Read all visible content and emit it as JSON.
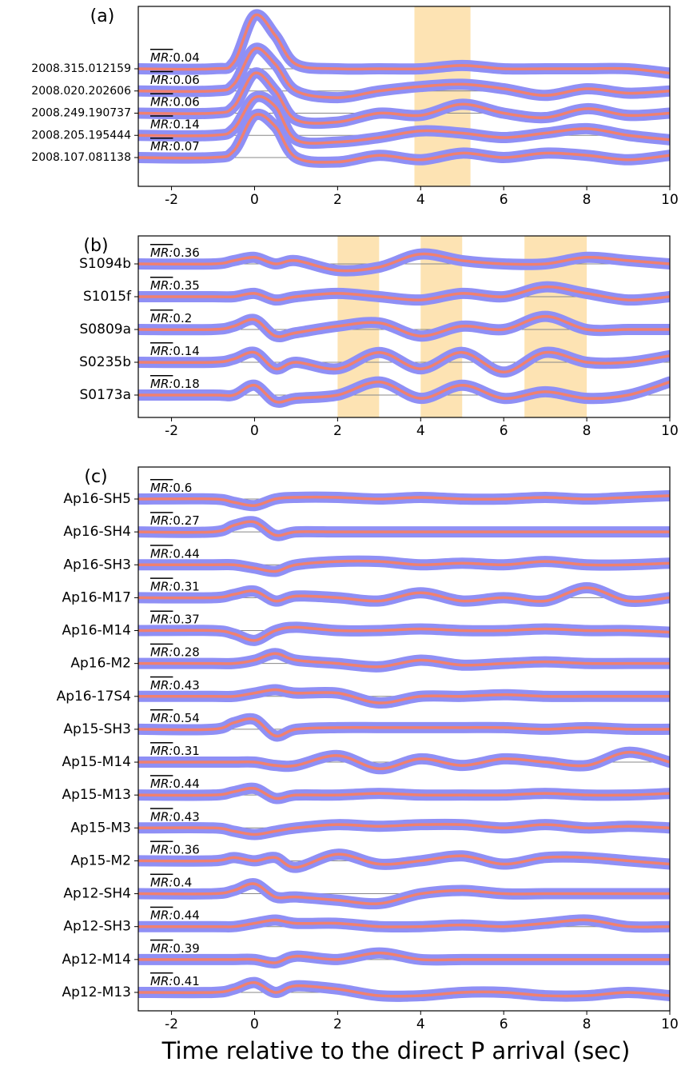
{
  "chart_data": [
    {
      "type": "line",
      "panel": "(a)",
      "xlim": [
        -2.8,
        10
      ],
      "xticks": [
        -2,
        0,
        2,
        4,
        6,
        8,
        10
      ],
      "shaded": [
        [
          3.85,
          5.2
        ]
      ],
      "mr_label": "MR:",
      "band_color": "#8f8ff5",
      "mean_color": "#f08070",
      "shade_color": "#fde3b3",
      "x": [
        -2.8,
        -1,
        -0.5,
        0,
        0.5,
        1,
        2,
        3,
        4,
        5,
        6,
        7,
        8,
        9,
        10
      ],
      "series": [
        {
          "name": "2008.315.012159",
          "mr": 0.04,
          "values": [
            0,
            0,
            0.3,
            2.4,
            1.5,
            0.2,
            0,
            0,
            0,
            0.15,
            0,
            0,
            0,
            0,
            -0.2
          ]
        },
        {
          "name": "2008.020.202606",
          "mr": 0.06,
          "values": [
            0,
            0,
            0.3,
            1.9,
            1.2,
            0,
            -0.3,
            0,
            0.2,
            0.3,
            0.1,
            -0.2,
            0.1,
            -0.1,
            0
          ]
        },
        {
          "name": "2008.249.190737",
          "mr": 0.06,
          "values": [
            0,
            0,
            0.3,
            1.8,
            1,
            -0.3,
            -0.4,
            0,
            -0.1,
            0.4,
            0,
            -0.2,
            0.2,
            -0.1,
            0
          ]
        },
        {
          "name": "2008.205.195444",
          "mr": 0.14,
          "values": [
            0,
            0,
            0.3,
            1.7,
            1.3,
            -0.2,
            -0.3,
            -0.1,
            0.2,
            0.1,
            -0.1,
            0.1,
            0.3,
            0,
            -0.2
          ]
        },
        {
          "name": "2008.107.081138",
          "mr": 0.07,
          "values": [
            0,
            0,
            0.3,
            1.9,
            1.4,
            0,
            -0.2,
            0.1,
            -0.1,
            0.2,
            0,
            0.2,
            0.1,
            -0.1,
            0.1
          ]
        }
      ]
    },
    {
      "type": "line",
      "panel": "(b)",
      "xlim": [
        -2.8,
        10
      ],
      "xticks": [
        -2,
        0,
        2,
        4,
        6,
        8,
        10
      ],
      "shaded": [
        [
          2,
          3
        ],
        [
          4,
          5
        ],
        [
          6.5,
          8
        ]
      ],
      "mr_label": "MR:",
      "band_color": "#8f8ff5",
      "mean_color": "#f08070",
      "shade_color": "#fde3b3",
      "x": [
        -2.8,
        -1,
        -0.5,
        0,
        0.5,
        1,
        2,
        3,
        4,
        5,
        6,
        7,
        8,
        9,
        10
      ],
      "series": [
        {
          "name": "S1094b",
          "mr": 0.36,
          "values": [
            0,
            0,
            0.1,
            0.2,
            0,
            0.1,
            -0.2,
            -0.1,
            0.3,
            0.1,
            0,
            0,
            0.2,
            0.1,
            0
          ]
        },
        {
          "name": "S1015f",
          "mr": 0.35,
          "values": [
            0,
            0,
            0,
            0.1,
            -0.1,
            0,
            0.1,
            0,
            -0.1,
            0.1,
            0,
            0.3,
            0.1,
            -0.1,
            0
          ]
        },
        {
          "name": "S0809a",
          "mr": 0.2,
          "values": [
            0,
            0,
            0.1,
            0.3,
            -0.2,
            -0.1,
            0.1,
            0.2,
            -0.2,
            0.1,
            0,
            0.4,
            0,
            0,
            0
          ]
        },
        {
          "name": "S0235b",
          "mr": 0.14,
          "values": [
            0,
            0,
            0.1,
            0.3,
            -0.2,
            0,
            -0.2,
            0.3,
            -0.2,
            0.3,
            -0.3,
            0.3,
            0,
            0,
            0.2
          ]
        },
        {
          "name": "S0173a",
          "mr": 0.18,
          "values": [
            0,
            0,
            0,
            0.3,
            -0.2,
            -0.1,
            0,
            0.4,
            -0.1,
            0.3,
            -0.1,
            0.1,
            -0.1,
            0,
            0.4
          ]
        }
      ]
    },
    {
      "type": "line",
      "panel": "(c)",
      "xlim": [
        -2.8,
        10
      ],
      "xticks": [
        -2,
        0,
        2,
        4,
        6,
        8,
        10
      ],
      "shaded": [],
      "mr_label": "MR:",
      "band_color": "#8f8ff5",
      "mean_color": "#f08070",
      "shade_color": "#fde3b3",
      "xlabel": "Time relative to the direct P arrival (sec)",
      "x": [
        -2.8,
        -1,
        -0.5,
        0,
        0.5,
        1,
        2,
        3,
        4,
        5,
        6,
        7,
        8,
        9,
        10
      ],
      "series": [
        {
          "name": "Ap16-SH5",
          "mr": 0.6,
          "values": [
            0,
            0,
            -0.1,
            -0.2,
            0,
            0.05,
            0.05,
            0,
            0.05,
            0,
            0,
            0.05,
            0,
            0.05,
            0.1
          ]
        },
        {
          "name": "Ap16-SH4",
          "mr": 0.27,
          "values": [
            0,
            0,
            0.2,
            0.3,
            -0.1,
            0,
            0,
            0,
            0,
            0,
            0,
            0,
            0,
            0,
            0
          ]
        },
        {
          "name": "Ap16-SH3",
          "mr": 0.44,
          "values": [
            0,
            0,
            0,
            -0.1,
            -0.2,
            0,
            0.1,
            0.1,
            0,
            0.05,
            0,
            0.1,
            0,
            0,
            0.05
          ]
        },
        {
          "name": "Ap16-M17",
          "mr": 0.31,
          "values": [
            0,
            0,
            0.1,
            0.2,
            -0.1,
            0.05,
            0,
            -0.1,
            0.15,
            -0.1,
            0,
            -0.1,
            0.3,
            -0.1,
            0
          ]
        },
        {
          "name": "Ap16-M14",
          "mr": 0.37,
          "values": [
            0,
            0,
            -0.1,
            -0.3,
            0,
            0.1,
            0,
            0,
            0.05,
            0,
            0,
            0.05,
            0,
            0,
            -0.05
          ]
        },
        {
          "name": "Ap16-M2",
          "mr": 0.28,
          "values": [
            0,
            0,
            0,
            0.1,
            0.3,
            0.1,
            0,
            -0.1,
            0.1,
            -0.05,
            0,
            0.05,
            0,
            0,
            0
          ]
        },
        {
          "name": "Ap16-17S4",
          "mr": 0.43,
          "values": [
            0,
            0,
            0,
            0.1,
            0.2,
            0.1,
            0.1,
            -0.2,
            0,
            0,
            0.05,
            0,
            0,
            0,
            0
          ]
        },
        {
          "name": "Ap15-SH3",
          "mr": 0.54,
          "values": [
            0,
            0,
            0.2,
            0.3,
            -0.2,
            0,
            0.05,
            0.05,
            0.05,
            0.05,
            0.05,
            0,
            0.05,
            0,
            0
          ]
        },
        {
          "name": "Ap15-M14",
          "mr": 0.31,
          "values": [
            0,
            0,
            0,
            0,
            -0.1,
            -0.1,
            0.2,
            -0.2,
            0.1,
            -0.1,
            0.1,
            0,
            -0.1,
            0.3,
            0
          ]
        },
        {
          "name": "Ap15-M13",
          "mr": 0.44,
          "values": [
            0,
            0,
            0.1,
            0.2,
            -0.1,
            0,
            0,
            0.05,
            0,
            0,
            0,
            0.05,
            0,
            0,
            0.05
          ]
        },
        {
          "name": "Ap15-M3",
          "mr": 0.43,
          "values": [
            0,
            0,
            -0.1,
            -0.2,
            -0.1,
            0,
            0.1,
            0.05,
            0.1,
            0.1,
            0,
            0.1,
            0,
            0.05,
            0
          ]
        },
        {
          "name": "Ap15-M2",
          "mr": 0.36,
          "values": [
            0,
            0,
            0.1,
            0,
            0.1,
            -0.2,
            0.2,
            -0.1,
            0,
            0.15,
            -0.1,
            0.1,
            0.1,
            0,
            -0.1
          ]
        },
        {
          "name": "Ap12-SH4",
          "mr": 0.4,
          "values": [
            0,
            0,
            0.1,
            0.3,
            -0.1,
            -0.1,
            -0.2,
            -0.3,
            0,
            0.1,
            0,
            0,
            0,
            0,
            0
          ]
        },
        {
          "name": "Ap12-SH3",
          "mr": 0.44,
          "values": [
            0,
            0,
            0,
            0.1,
            0.2,
            0.1,
            0.1,
            0,
            0,
            0.05,
            0,
            0.1,
            0.2,
            0,
            0
          ]
        },
        {
          "name": "Ap12-M14",
          "mr": 0.39,
          "values": [
            0,
            0,
            0,
            0,
            -0.1,
            0.1,
            0,
            0.2,
            0,
            0,
            0,
            0,
            0,
            0,
            0
          ]
        },
        {
          "name": "Ap12-M13",
          "mr": 0.41,
          "values": [
            0,
            0,
            0.1,
            0.3,
            0,
            0.2,
            0.1,
            -0.1,
            -0.1,
            0,
            0,
            -0.1,
            -0.1,
            0,
            -0.1
          ]
        }
      ]
    }
  ]
}
